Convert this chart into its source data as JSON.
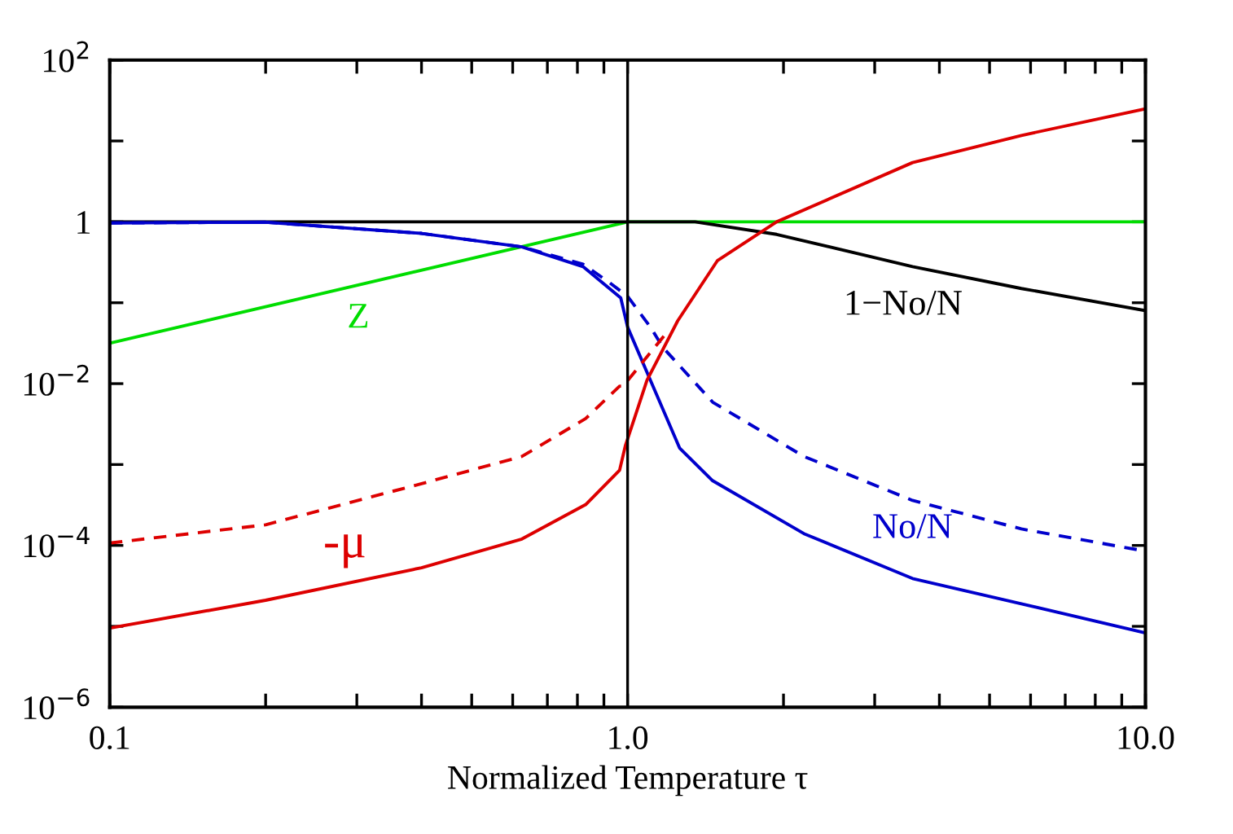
{
  "chart_data": {
    "type": "line",
    "xlabel": "Normalized Temperature τ",
    "log": "xy",
    "xlim": [
      0.1,
      10
    ],
    "ylim": [
      1e-06,
      100
    ],
    "xticks": [
      0.1,
      {
        "value": 0.2,
        "label": null
      },
      {
        "value": 0.3,
        "label": null
      },
      {
        "value": 0.4,
        "label": null
      },
      {
        "value": 0.5,
        "label": null
      },
      {
        "value": 0.6,
        "label": null
      },
      {
        "value": 0.7,
        "label": null
      },
      {
        "value": 0.8,
        "label": null
      },
      {
        "value": 0.9,
        "label": null
      },
      {
        "value": 1,
        "label": "1.0"
      },
      {
        "value": 2,
        "label": null
      },
      {
        "value": 3,
        "label": null
      },
      {
        "value": 4,
        "label": null
      },
      {
        "value": 5,
        "label": null
      },
      {
        "value": 6,
        "label": null
      },
      {
        "value": 7,
        "label": null
      },
      {
        "value": 8,
        "label": null
      },
      {
        "value": 9,
        "label": null
      },
      {
        "value": 10,
        "label": "10.0"
      }
    ],
    "yticks": [
      {
        "value": 1e-06,
        "label": "10$^{−6}$"
      },
      {
        "value": 1e-05,
        "label": null
      },
      {
        "value": 0.0001,
        "label": "10$^{−4}$"
      },
      {
        "value": 0.001,
        "label": null
      },
      {
        "value": 0.01,
        "label": "10$^{−2}$"
      },
      {
        "value": 0.1,
        "label": null
      },
      1,
      {
        "value": 10,
        "label": null
      },
      {
        "value": 100,
        "label": "10$^{2}$"
      }
    ],
    "grid": false,
    "legend": false,
    "series": [
      {
        "name": "Z",
        "color": "#00dd00",
        "line_style": "solid",
        "x": [
          0.1,
          1,
          10
        ],
        "values": [
          0.0316,
          1,
          1
        ]
      },
      {
        "name": "1−No/N",
        "color": "#000000",
        "line_style": "solid",
        "x": [
          0.1,
          1,
          1.06,
          1.35,
          1.94,
          3.55,
          5.76,
          10
        ],
        "values": [
          1,
          1,
          1,
          1,
          0.7,
          0.28,
          0.15,
          0.08
        ]
      },
      {
        "name": "No/N",
        "color": "#0000cc",
        "line_style": "solid",
        "x": [
          0.1,
          0.2,
          0.4,
          0.625,
          0.82,
          0.97,
          1.0,
          1.107,
          1.26,
          1.46,
          2.19,
          3.55,
          5.76,
          10
        ],
        "values": [
          0.97,
          0.99,
          0.72,
          0.49,
          0.28,
          0.115,
          0.05,
          0.011,
          0.0016,
          0.00063,
          0.00014,
          3.9e-05,
          1.9e-05,
          8.3e-06
        ]
      },
      {
        "color": "#0000cc",
        "line_style": "dashed",
        "x": [
          0.1,
          0.2,
          0.4,
          0.625,
          0.82,
          0.92,
          1.0,
          1.107,
          1.17,
          1.46,
          2.19,
          3.55,
          5.76,
          10
        ],
        "values": [
          0.97,
          0.99,
          0.72,
          0.49,
          0.3,
          0.18,
          0.12,
          0.05,
          0.028,
          0.0059,
          0.00126,
          0.00036,
          0.00016,
          8.5e-05
        ]
      },
      {
        "name": "-μ",
        "color": "#dd0000",
        "line_style": "solid",
        "x": [
          0.1,
          0.2,
          0.4,
          0.625,
          0.83,
          0.965,
          0.99,
          1.09,
          1.25,
          1.49,
          1.94,
          3.55,
          5.76,
          10
        ],
        "values": [
          9.5e-06,
          2.1e-05,
          5.3e-05,
          0.00012,
          0.00032,
          0.00085,
          0.0017,
          0.011,
          0.06,
          0.33,
          1.0,
          5.4,
          11.7,
          25
        ]
      },
      {
        "color": "#dd0000",
        "line_style": "dashed",
        "x": [
          0.1,
          0.2,
          0.4,
          0.625,
          0.83,
          0.965,
          0.98,
          1.18
        ],
        "values": [
          0.000107,
          0.00018,
          0.00058,
          0.00126,
          0.0037,
          0.0093,
          0.0093,
          0.04
        ]
      }
    ],
    "ref_lines": [
      {
        "axis": "x",
        "value": 1,
        "color": "#000000"
      }
    ]
  }
}
